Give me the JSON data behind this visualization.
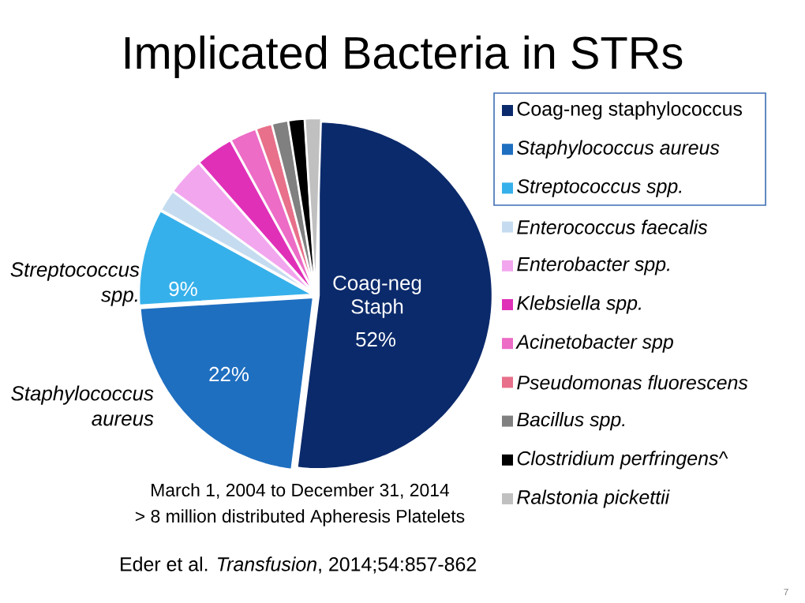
{
  "chart_data": {
    "type": "pie",
    "title": "Implicated Bacteria in STRs",
    "categories": [
      "Coag-neg staphylococcus",
      "Staphylococcus aureus",
      "Streptococcus  spp.",
      "Enterococcus faecalis",
      "Enterobacter spp.",
      "Klebsiella spp.",
      "Acinetobacter spp",
      "Pseudomonas fluorescens",
      "Bacillus spp.",
      "Clostridium perfringens^",
      "Ralstonia pickettii"
    ],
    "values": [
      52,
      22,
      9,
      2,
      3.5,
      3.5,
      2.5,
      1.5,
      1.5,
      1.5,
      1.5
    ],
    "colors": [
      "#0b2a6b",
      "#1f6fc0",
      "#36b0ea",
      "#c5dcf0",
      "#f2a6ee",
      "#e030b8",
      "#ec6cc6",
      "#e8708a",
      "#808080",
      "#000000",
      "#c0c0c0"
    ],
    "value_labels": [
      "52%",
      "22%",
      "9%",
      null,
      null,
      null,
      null,
      null,
      null,
      null,
      null
    ],
    "legend": "right",
    "annotations": [
      "Coag-neg Staph",
      "Streptococcus spp.",
      "Staphylococcus aureus",
      "March 1, 2004 to December 31, 2014",
      "> 8 million distributed Apheresis Platelets",
      "Eder et al. *Transfusion*, 2014;54:857-862",
      "7"
    ]
  }
}
